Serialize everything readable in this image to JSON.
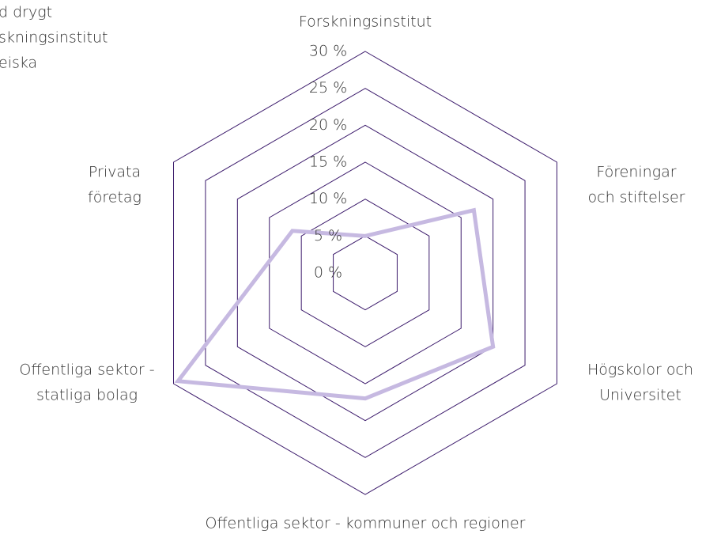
{
  "chart_data": {
    "type": "radar",
    "annotation_lines": [
      "d drygt",
      "skningsinstitut",
      "eiska"
    ],
    "categories": [
      [
        "Forskningsinstitut"
      ],
      [
        "Föreningar",
        "och stiftelser"
      ],
      [
        "Högskolor och",
        "Universitet"
      ],
      [
        "Offentliga sektor - kommuner och regioner"
      ],
      [
        "Offentliga sektor -",
        "statliga bolag"
      ],
      [
        "Privata",
        "företag"
      ]
    ],
    "values": [
      5,
      17,
      20,
      17,
      29.3,
      11.4
    ],
    "color": "#c6b9e1",
    "grid_color": "#3b1a6b",
    "ylim": [
      0,
      30
    ],
    "yticks": [
      {
        "value": 0,
        "label": "0 %"
      },
      {
        "value": 5,
        "label": "5 %"
      },
      {
        "value": 10,
        "label": "10 %"
      },
      {
        "value": 15,
        "label": "15 %"
      },
      {
        "value": 20,
        "label": "20 %"
      },
      {
        "value": 25,
        "label": "25 %"
      },
      {
        "value": 30,
        "label": "30 %"
      }
    ],
    "grid": true
  }
}
